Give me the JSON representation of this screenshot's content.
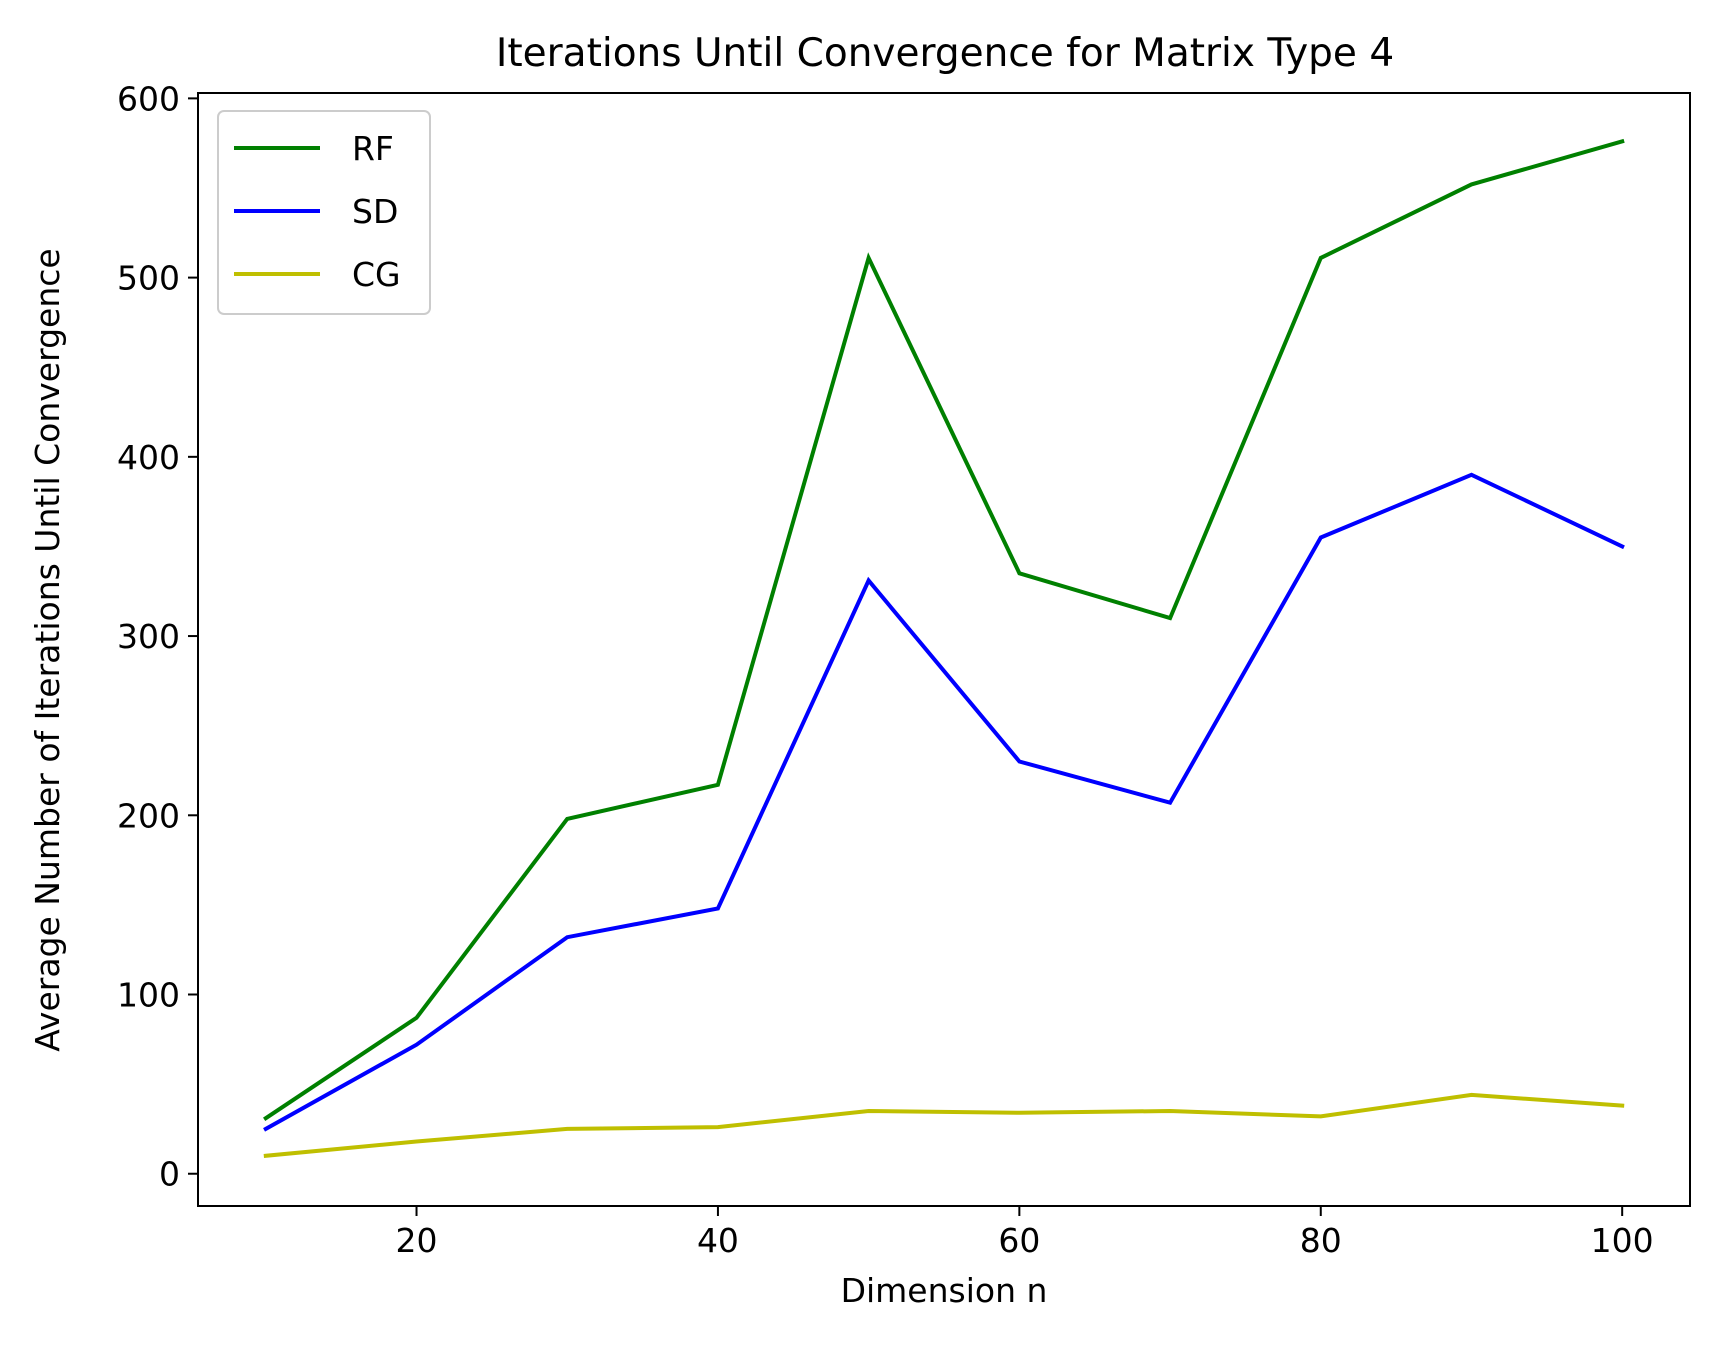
{
  "chart_data": {
    "type": "line",
    "title": "Iterations Until Convergence for Matrix Type 4",
    "xlabel": "Dimension n",
    "ylabel": "Average Number of Iterations Until Convergence",
    "xlim": [
      5.5,
      104.5
    ],
    "ylim": [
      -18,
      603
    ],
    "xticks": [
      20,
      40,
      60,
      80,
      100
    ],
    "yticks": [
      0,
      100,
      200,
      300,
      400,
      500,
      600
    ],
    "grid": false,
    "legend_position": "upper-left",
    "x": [
      10,
      20,
      30,
      40,
      50,
      60,
      70,
      80,
      90,
      100
    ],
    "series": [
      {
        "name": "RF",
        "color": "#008000",
        "values": [
          31,
          87,
          198,
          217,
          511,
          335,
          310,
          511,
          552,
          576
        ]
      },
      {
        "name": "SD",
        "color": "#0000ff",
        "values": [
          25,
          72,
          132,
          148,
          331,
          230,
          207,
          355,
          390,
          350
        ]
      },
      {
        "name": "CG",
        "color": "#bfbf00",
        "values": [
          10,
          18,
          25,
          26,
          35,
          34,
          35,
          32,
          44,
          38
        ]
      }
    ]
  }
}
